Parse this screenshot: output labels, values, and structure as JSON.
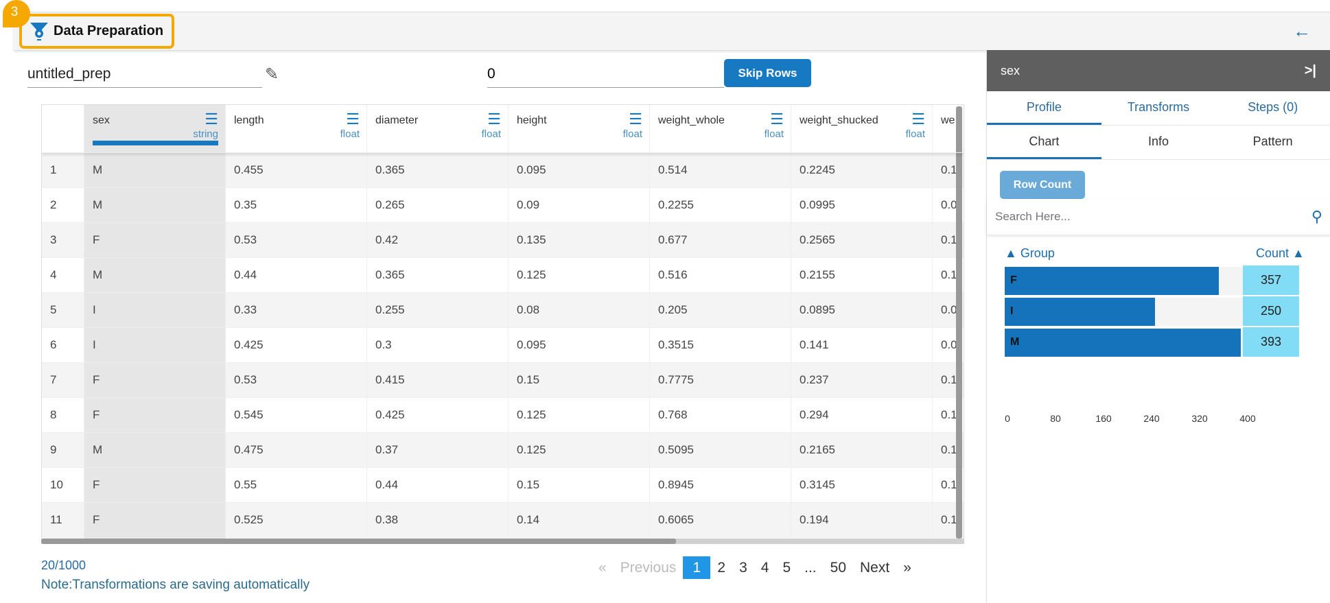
{
  "header": {
    "title": "Data Preparation",
    "step_badge": "3"
  },
  "toolbar": {
    "prep_name": "untitled_prep",
    "skip_value": "0",
    "skip_label": "Skip Rows"
  },
  "grid": {
    "columns": [
      {
        "name": "sex",
        "type": "string"
      },
      {
        "name": "length",
        "type": "float"
      },
      {
        "name": "diameter",
        "type": "float"
      },
      {
        "name": "height",
        "type": "float"
      },
      {
        "name": "weight_whole",
        "type": "float"
      },
      {
        "name": "weight_shucked",
        "type": "float"
      },
      {
        "name": "we",
        "type": ""
      }
    ],
    "rows": [
      [
        "1",
        "M",
        "0.455",
        "0.365",
        "0.095",
        "0.514",
        "0.2245",
        "0.1"
      ],
      [
        "2",
        "M",
        "0.35",
        "0.265",
        "0.09",
        "0.2255",
        "0.0995",
        "0.0"
      ],
      [
        "3",
        "F",
        "0.53",
        "0.42",
        "0.135",
        "0.677",
        "0.2565",
        "0.1"
      ],
      [
        "4",
        "M",
        "0.44",
        "0.365",
        "0.125",
        "0.516",
        "0.2155",
        "0.1"
      ],
      [
        "5",
        "I",
        "0.33",
        "0.255",
        "0.08",
        "0.205",
        "0.0895",
        "0.0"
      ],
      [
        "6",
        "I",
        "0.425",
        "0.3",
        "0.095",
        "0.3515",
        "0.141",
        "0.0"
      ],
      [
        "7",
        "F",
        "0.53",
        "0.415",
        "0.15",
        "0.7775",
        "0.237",
        "0.1"
      ],
      [
        "8",
        "F",
        "0.545",
        "0.425",
        "0.125",
        "0.768",
        "0.294",
        "0.1"
      ],
      [
        "9",
        "M",
        "0.475",
        "0.37",
        "0.125",
        "0.5095",
        "0.2165",
        "0.1"
      ],
      [
        "10",
        "F",
        "0.55",
        "0.44",
        "0.15",
        "0.8945",
        "0.3145",
        "0.1"
      ],
      [
        "11",
        "F",
        "0.525",
        "0.38",
        "0.14",
        "0.6065",
        "0.194",
        "0.1"
      ]
    ]
  },
  "footer": {
    "row_count": "20/1000",
    "note": "Note:Transformations are saving automatically"
  },
  "pagination": {
    "prev": "Previous",
    "pages": [
      "1",
      "2",
      "3",
      "4",
      "5",
      "...",
      "50"
    ],
    "next": "Next",
    "prev_arrow": "«",
    "next_arrow": "»"
  },
  "panel": {
    "column": "sex",
    "tabs": [
      "Profile",
      "Transforms",
      "Steps (0)"
    ],
    "subtabs": [
      "Chart",
      "Info",
      "Pattern"
    ],
    "row_count_label": "Row Count",
    "search_placeholder": "Search Here...",
    "group_header": "▲ Group",
    "count_header": "Count ▲"
  },
  "chart_data": {
    "type": "bar",
    "orientation": "horizontal",
    "categories": [
      "F",
      "I",
      "M"
    ],
    "values": [
      357,
      250,
      393
    ],
    "xlim": [
      0,
      400
    ],
    "ticks": [
      "0",
      "80",
      "160",
      "240",
      "320",
      "400"
    ],
    "colors": {
      "bar": "#1473ba",
      "count_cell": "#82dcf5"
    }
  }
}
